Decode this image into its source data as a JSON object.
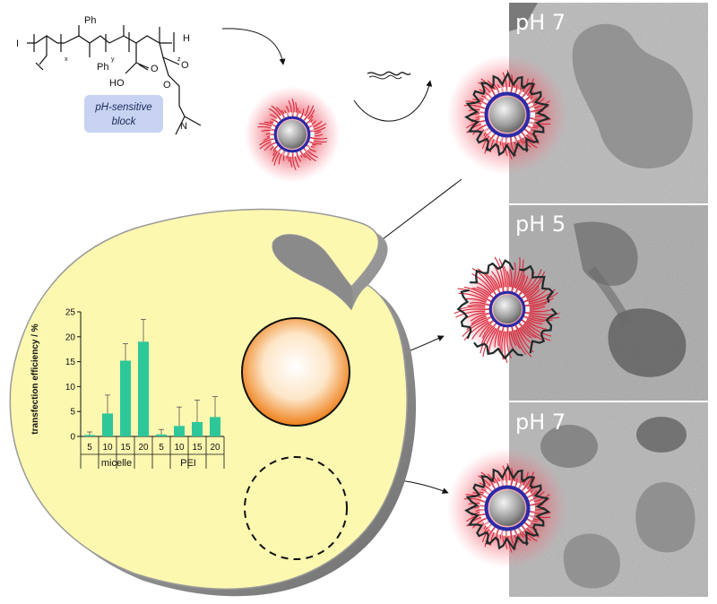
{
  "panels": [
    {
      "label": "pH 7"
    },
    {
      "label": "pH 5"
    },
    {
      "label": "pH 7"
    }
  ],
  "polymer": {
    "tag_line1": "pH-sensitive",
    "tag_line2": "block",
    "ph1": "Ph",
    "ph2": "Ph",
    "sub_x": "x",
    "sub_y": "y",
    "sub_z": "z",
    "end_h": "H",
    "ho": "HO",
    "o_acid": "O",
    "o_ester1": "O",
    "o_ester2": "O",
    "n": "N"
  },
  "chart_data": {
    "type": "bar",
    "ylabel": "transfection efficiency / %",
    "ylim": [
      0,
      25
    ],
    "yticks": [
      0,
      5,
      10,
      15,
      20,
      25
    ],
    "categories": [
      "5",
      "10",
      "15",
      "20",
      "5",
      "10",
      "15",
      "20"
    ],
    "groups": [
      "micelle",
      "PEI"
    ],
    "group_of": [
      0,
      0,
      0,
      0,
      1,
      1,
      1,
      1
    ],
    "values": [
      0.3,
      4.6,
      15.2,
      19.0,
      0.4,
      2.1,
      2.9,
      3.9
    ],
    "errors": [
      0.6,
      3.7,
      3.4,
      4.5,
      1.0,
      3.8,
      4.4,
      4.1
    ],
    "bar_color": "#2ec79a"
  },
  "colors": {
    "cell": "#fdf8b0",
    "cell_edge": "#8a8a8a",
    "shell": "#d8263a",
    "core": "#9a9a9a",
    "vesicle": "#f08a1e"
  }
}
